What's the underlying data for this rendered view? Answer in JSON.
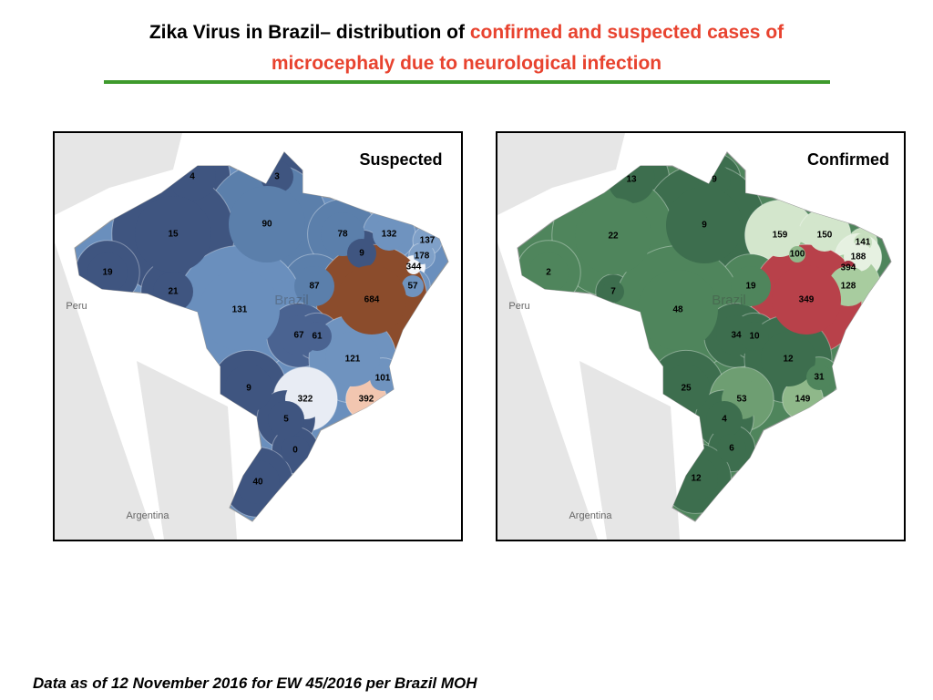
{
  "header": {
    "title_black": "Zika Virus in Brazil– distribution of",
    "title_red_line1": "confirmed and  suspected cases of",
    "title_red_line2": "microcephaly due to neurological infection"
  },
  "maps": [
    {
      "title": "Suspected",
      "places": [
        "Peru",
        "Brazil",
        "Argentina"
      ],
      "state_values": [
        4,
        3,
        90,
        78,
        132,
        137,
        15,
        9,
        178,
        344,
        19,
        21,
        87,
        57,
        684,
        131,
        67,
        61,
        121,
        101,
        9,
        322,
        392,
        5,
        0,
        40
      ]
    },
    {
      "title": "Confirmed",
      "places": [
        "Peru",
        "Brazil",
        "Argentina"
      ],
      "state_values": [
        13,
        9,
        9,
        159,
        150,
        141,
        22,
        188,
        100,
        394,
        2,
        19,
        128,
        7,
        349,
        48,
        34,
        10,
        12,
        31,
        25,
        53,
        149,
        4,
        6,
        12
      ]
    }
  ],
  "footer": "Data as of 12 November 2016 for EW 45/2016 per Brazil MOH"
}
